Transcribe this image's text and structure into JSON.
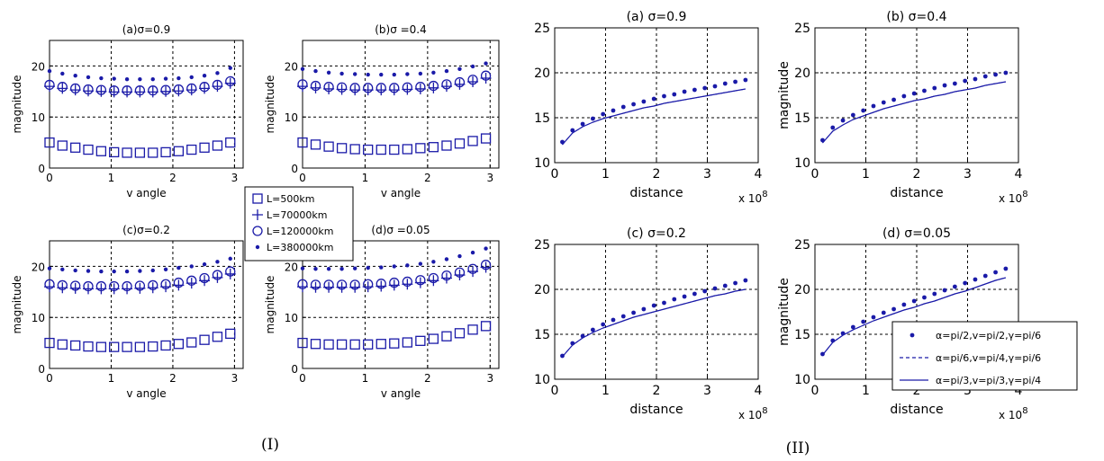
{
  "chart_data": [
    {
      "type": "scatter",
      "group": "I",
      "title": "(a)σ=0.9",
      "xlabel": "v angle",
      "ylabel": "magnitude",
      "xlim": [
        0,
        3.14
      ],
      "ylim": [
        0,
        25
      ],
      "xticks": [
        "0",
        "1",
        "2",
        "3"
      ],
      "yticks": [
        "0",
        "10",
        "20"
      ],
      "x": [
        0,
        0.209,
        0.419,
        0.628,
        0.838,
        1.047,
        1.257,
        1.466,
        1.676,
        1.885,
        2.094,
        2.304,
        2.513,
        2.723,
        2.932
      ],
      "series": [
        {
          "name": "L=500km",
          "marker": "square",
          "values": [
            5.0,
            4.4,
            4.0,
            3.6,
            3.3,
            3.1,
            3.0,
            3.0,
            3.0,
            3.1,
            3.3,
            3.6,
            4.0,
            4.4,
            5.0
          ]
        },
        {
          "name": "L=70000km",
          "marker": "plus",
          "values": [
            16.0,
            15.6,
            15.3,
            15.1,
            15.0,
            14.9,
            14.9,
            14.9,
            14.9,
            15.0,
            15.1,
            15.3,
            15.6,
            16.0,
            16.6
          ]
        },
        {
          "name": "L=120000km",
          "marker": "circle",
          "values": [
            16.3,
            15.9,
            15.6,
            15.4,
            15.3,
            15.2,
            15.2,
            15.2,
            15.2,
            15.3,
            15.4,
            15.6,
            15.9,
            16.3,
            17.0
          ]
        },
        {
          "name": "L=380000km",
          "marker": "dot",
          "values": [
            19.0,
            18.5,
            18.1,
            17.8,
            17.6,
            17.5,
            17.4,
            17.4,
            17.4,
            17.5,
            17.6,
            17.8,
            18.1,
            18.6,
            19.6
          ]
        }
      ]
    },
    {
      "type": "scatter",
      "group": "I",
      "title": "(b)σ =0.4",
      "xlabel": "v angle",
      "ylabel": "magnitude",
      "xlim": [
        0,
        3.14
      ],
      "ylim": [
        0,
        25
      ],
      "xticks": [
        "0",
        "1",
        "2",
        "3"
      ],
      "yticks": [
        "0",
        "10",
        "20"
      ],
      "x": [
        0,
        0.209,
        0.419,
        0.628,
        0.838,
        1.047,
        1.257,
        1.466,
        1.676,
        1.885,
        2.094,
        2.304,
        2.513,
        2.723,
        2.932
      ],
      "series": [
        {
          "name": "L=500km",
          "marker": "square",
          "values": [
            5.0,
            4.6,
            4.2,
            3.9,
            3.7,
            3.6,
            3.6,
            3.6,
            3.7,
            3.9,
            4.1,
            4.4,
            4.8,
            5.3,
            5.8
          ]
        },
        {
          "name": "L=70000km",
          "marker": "plus",
          "values": [
            16.0,
            15.7,
            15.5,
            15.4,
            15.3,
            15.3,
            15.3,
            15.3,
            15.4,
            15.5,
            15.7,
            16.0,
            16.4,
            16.9,
            17.6
          ]
        },
        {
          "name": "L=120000km",
          "marker": "circle",
          "values": [
            16.4,
            16.1,
            15.9,
            15.8,
            15.7,
            15.7,
            15.7,
            15.7,
            15.8,
            15.9,
            16.1,
            16.4,
            16.8,
            17.3,
            18.1
          ]
        },
        {
          "name": "L=380000km",
          "marker": "dot",
          "values": [
            19.4,
            19.0,
            18.7,
            18.5,
            18.4,
            18.3,
            18.3,
            18.3,
            18.4,
            18.5,
            18.7,
            19.0,
            19.4,
            19.9,
            20.5
          ]
        }
      ]
    },
    {
      "type": "scatter",
      "group": "I",
      "title": "(c)σ=0.2",
      "xlabel": "v angle",
      "ylabel": "magnitude",
      "xlim": [
        0,
        3.14
      ],
      "ylim": [
        0,
        25
      ],
      "xticks": [
        "0",
        "1",
        "2",
        "3"
      ],
      "yticks": [
        "0",
        "10",
        "20"
      ],
      "x": [
        0,
        0.209,
        0.419,
        0.628,
        0.838,
        1.047,
        1.257,
        1.466,
        1.676,
        1.885,
        2.094,
        2.304,
        2.513,
        2.723,
        2.932
      ],
      "series": [
        {
          "name": "L=500km",
          "marker": "square",
          "values": [
            5.0,
            4.7,
            4.5,
            4.3,
            4.2,
            4.2,
            4.2,
            4.2,
            4.3,
            4.5,
            4.8,
            5.1,
            5.6,
            6.2,
            6.8
          ]
        },
        {
          "name": "L=70000km",
          "marker": "plus",
          "values": [
            16.0,
            15.8,
            15.7,
            15.6,
            15.6,
            15.6,
            15.6,
            15.7,
            15.8,
            16.0,
            16.3,
            16.7,
            17.2,
            17.8,
            18.5
          ]
        },
        {
          "name": "L=120000km",
          "marker": "circle",
          "values": [
            16.5,
            16.3,
            16.2,
            16.1,
            16.1,
            16.1,
            16.1,
            16.2,
            16.3,
            16.5,
            16.8,
            17.2,
            17.7,
            18.3,
            19.0
          ]
        },
        {
          "name": "L=380000km",
          "marker": "dot",
          "values": [
            19.6,
            19.4,
            19.2,
            19.1,
            19.0,
            19.0,
            19.0,
            19.1,
            19.2,
            19.4,
            19.7,
            20.0,
            20.4,
            20.9,
            21.5
          ]
        }
      ]
    },
    {
      "type": "scatter",
      "group": "I",
      "title": "(d)σ =0.05",
      "xlabel": "v angle",
      "ylabel": "magnitude",
      "xlim": [
        0,
        3.14
      ],
      "ylim": [
        0,
        25
      ],
      "xticks": [
        "0",
        "1",
        "2",
        "3"
      ],
      "yticks": [
        "0",
        "10",
        "20"
      ],
      "x": [
        0,
        0.209,
        0.419,
        0.628,
        0.838,
        1.047,
        1.257,
        1.466,
        1.676,
        1.885,
        2.094,
        2.304,
        2.513,
        2.723,
        2.932
      ],
      "series": [
        {
          "name": "L=500km",
          "marker": "square",
          "values": [
            5.0,
            4.8,
            4.7,
            4.7,
            4.7,
            4.7,
            4.8,
            4.9,
            5.1,
            5.4,
            5.8,
            6.3,
            6.9,
            7.6,
            8.3
          ]
        },
        {
          "name": "L=70000km",
          "marker": "plus",
          "values": [
            16.0,
            15.9,
            15.9,
            15.9,
            15.9,
            16.0,
            16.1,
            16.3,
            16.5,
            16.8,
            17.2,
            17.7,
            18.3,
            19.0,
            19.8
          ]
        },
        {
          "name": "L=120000km",
          "marker": "circle",
          "values": [
            16.5,
            16.4,
            16.4,
            16.4,
            16.4,
            16.5,
            16.6,
            16.8,
            17.0,
            17.3,
            17.7,
            18.2,
            18.8,
            19.5,
            20.3
          ]
        },
        {
          "name": "L=380000km",
          "marker": "dot",
          "values": [
            19.6,
            19.5,
            19.5,
            19.5,
            19.6,
            19.7,
            19.8,
            20.0,
            20.2,
            20.5,
            20.9,
            21.4,
            22.0,
            22.7,
            23.5
          ]
        }
      ]
    },
    {
      "type": "line",
      "group": "II",
      "title": "(a) σ=0.9",
      "xlabel": "distance",
      "ylabel": "",
      "x_multiplier": "x 10^8",
      "xlim": [
        0,
        4
      ],
      "ylim": [
        10,
        25
      ],
      "xticks": [
        "0",
        "1",
        "2",
        "3",
        "4"
      ],
      "yticks": [
        "10",
        "15",
        "20",
        "25"
      ],
      "x": [
        0.15,
        0.35,
        0.55,
        0.75,
        0.95,
        1.15,
        1.35,
        1.55,
        1.75,
        1.95,
        2.15,
        2.35,
        2.55,
        2.75,
        2.95,
        3.15,
        3.35,
        3.55,
        3.75
      ],
      "series": [
        {
          "name": "α=pi/2,v=pi/2,γ=pi/6",
          "style": "dots",
          "values": [
            12.3,
            13.6,
            14.3,
            14.9,
            15.4,
            15.8,
            16.2,
            16.5,
            16.8,
            17.1,
            17.4,
            17.6,
            17.9,
            18.1,
            18.3,
            18.5,
            18.8,
            19.0,
            19.2
          ]
        },
        {
          "name": "α=pi/6,v=pi/4,γ=pi/6",
          "style": "dashed",
          "values": [
            12.0,
            13.3,
            14.0,
            14.5,
            14.9,
            15.2,
            15.5,
            15.8,
            16.1,
            16.3,
            16.6,
            16.8,
            17.0,
            17.2,
            17.4,
            17.6,
            17.8,
            18.0,
            18.2
          ]
        },
        {
          "name": "α=pi/3,v=pi/3,γ=pi/4",
          "style": "solid",
          "values": [
            12.0,
            13.3,
            14.0,
            14.5,
            14.9,
            15.2,
            15.5,
            15.8,
            16.1,
            16.3,
            16.6,
            16.8,
            17.0,
            17.2,
            17.4,
            17.6,
            17.8,
            18.0,
            18.2
          ]
        }
      ]
    },
    {
      "type": "line",
      "group": "II",
      "title": "(b) σ=0.4",
      "xlabel": "distance",
      "ylabel": "magnitude",
      "x_multiplier": "x 10^8",
      "xlim": [
        0,
        4
      ],
      "ylim": [
        10,
        25
      ],
      "xticks": [
        "0",
        "1",
        "2",
        "3",
        "4"
      ],
      "yticks": [
        "10",
        "15",
        "20",
        "25"
      ],
      "x": [
        0.15,
        0.35,
        0.55,
        0.75,
        0.95,
        1.15,
        1.35,
        1.55,
        1.75,
        1.95,
        2.15,
        2.35,
        2.55,
        2.75,
        2.95,
        3.15,
        3.35,
        3.55,
        3.75
      ],
      "series": [
        {
          "name": "α=pi/2,v=pi/2,γ=pi/6",
          "style": "dots",
          "values": [
            12.5,
            13.9,
            14.7,
            15.3,
            15.8,
            16.3,
            16.7,
            17.0,
            17.4,
            17.7,
            18.0,
            18.3,
            18.6,
            18.8,
            19.1,
            19.3,
            19.6,
            19.8,
            20.0
          ]
        },
        {
          "name": "α=pi/6,v=pi/4,γ=pi/6",
          "style": "dashed",
          "values": [
            12.2,
            13.5,
            14.2,
            14.8,
            15.2,
            15.6,
            16.0,
            16.3,
            16.6,
            16.9,
            17.1,
            17.4,
            17.6,
            17.9,
            18.1,
            18.3,
            18.6,
            18.8,
            19.0
          ]
        },
        {
          "name": "α=pi/3,v=pi/3,γ=pi/4",
          "style": "solid",
          "values": [
            12.2,
            13.5,
            14.2,
            14.8,
            15.2,
            15.6,
            16.0,
            16.3,
            16.6,
            16.9,
            17.1,
            17.4,
            17.6,
            17.9,
            18.1,
            18.3,
            18.6,
            18.8,
            19.0
          ]
        }
      ]
    },
    {
      "type": "line",
      "group": "II",
      "title": "(c) σ=0.2",
      "xlabel": "distance",
      "ylabel": "",
      "x_multiplier": "x 10^8",
      "xlim": [
        0,
        4
      ],
      "ylim": [
        10,
        25
      ],
      "xticks": [
        "0",
        "1",
        "2",
        "3",
        "4"
      ],
      "yticks": [
        "10",
        "15",
        "20",
        "25"
      ],
      "x": [
        0.15,
        0.35,
        0.55,
        0.75,
        0.95,
        1.15,
        1.35,
        1.55,
        1.75,
        1.95,
        2.15,
        2.35,
        2.55,
        2.75,
        2.95,
        3.15,
        3.35,
        3.55,
        3.75
      ],
      "series": [
        {
          "name": "α=pi/2,v=pi/2,γ=pi/6",
          "style": "dots",
          "values": [
            12.6,
            14.0,
            14.8,
            15.5,
            16.1,
            16.6,
            17.0,
            17.4,
            17.8,
            18.2,
            18.5,
            18.9,
            19.2,
            19.5,
            19.8,
            20.1,
            20.4,
            20.7,
            21.0
          ]
        },
        {
          "name": "α=pi/6,v=pi/4,γ=pi/6",
          "style": "dashed",
          "values": [
            12.5,
            13.8,
            14.6,
            15.2,
            15.7,
            16.1,
            16.5,
            16.9,
            17.2,
            17.5,
            17.8,
            18.1,
            18.4,
            18.7,
            19.0,
            19.3,
            19.5,
            19.8,
            20.0
          ]
        },
        {
          "name": "α=pi/3,v=pi/3,γ=pi/4",
          "style": "solid",
          "values": [
            12.5,
            13.8,
            14.6,
            15.2,
            15.7,
            16.1,
            16.5,
            16.9,
            17.2,
            17.5,
            17.8,
            18.1,
            18.4,
            18.7,
            19.0,
            19.3,
            19.5,
            19.8,
            20.0
          ]
        }
      ]
    },
    {
      "type": "line",
      "group": "II",
      "title": "(d) σ=0.05",
      "xlabel": "distance",
      "ylabel": "magnitude",
      "x_multiplier": "x 10^8",
      "xlim": [
        0,
        4
      ],
      "ylim": [
        10,
        25
      ],
      "xticks": [
        "0",
        "1",
        "2",
        "3",
        "4"
      ],
      "yticks": [
        "10",
        "15",
        "20",
        "25"
      ],
      "x": [
        0.15,
        0.35,
        0.55,
        0.75,
        0.95,
        1.15,
        1.35,
        1.55,
        1.75,
        1.95,
        2.15,
        2.35,
        2.55,
        2.75,
        2.95,
        3.15,
        3.35,
        3.55,
        3.75
      ],
      "series": [
        {
          "name": "α=pi/2,v=pi/2,γ=pi/6",
          "style": "dots",
          "values": [
            12.8,
            14.3,
            15.1,
            15.8,
            16.4,
            16.9,
            17.4,
            17.8,
            18.3,
            18.7,
            19.1,
            19.5,
            19.9,
            20.3,
            20.7,
            21.1,
            21.5,
            21.9,
            22.3
          ]
        },
        {
          "name": "α=pi/6,v=pi/4,γ=pi/6",
          "style": "dashed",
          "values": [
            12.7,
            14.1,
            14.9,
            15.5,
            16.0,
            16.5,
            16.9,
            17.3,
            17.7,
            18.0,
            18.4,
            18.7,
            19.1,
            19.5,
            19.8,
            20.2,
            20.6,
            21.0,
            21.3
          ]
        },
        {
          "name": "α=pi/3,v=pi/3,γ=pi/4",
          "style": "solid",
          "values": [
            12.7,
            14.1,
            14.9,
            15.5,
            16.0,
            16.5,
            16.9,
            17.3,
            17.7,
            18.0,
            18.4,
            18.7,
            19.1,
            19.5,
            19.8,
            20.2,
            20.6,
            21.0,
            21.3
          ]
        }
      ]
    }
  ],
  "legend_I": {
    "entries": [
      {
        "label": "L=500km",
        "marker": "square"
      },
      {
        "label": "L=70000km",
        "marker": "plus"
      },
      {
        "label": "L=120000km",
        "marker": "circle"
      },
      {
        "label": "L=380000km",
        "marker": "dot"
      }
    ]
  },
  "legend_II": {
    "entries": [
      {
        "label": "α=pi/2,v=pi/2,γ=pi/6",
        "style": "dots"
      },
      {
        "label": "α=pi/6,v=pi/4,γ=pi/6",
        "style": "dashed"
      },
      {
        "label": "α=pi/3,v=pi/3,γ=pi/4",
        "style": "solid"
      }
    ]
  },
  "group_labels": {
    "I": "(I)",
    "II": "(II)"
  },
  "colors": {
    "marker": "#1a1aa8",
    "axes": "#000000",
    "grid": "#000000"
  }
}
